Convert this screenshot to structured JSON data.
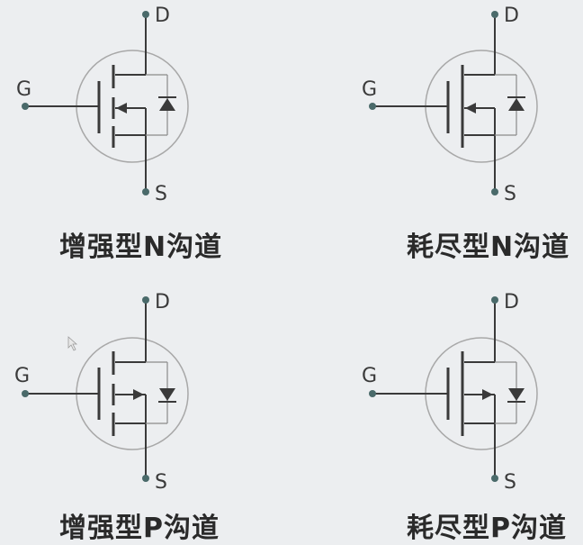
{
  "symbols": [
    {
      "id": "nmos-enhancement",
      "caption": "增强型N沟道",
      "gate": "G",
      "drain": "D",
      "source": "S",
      "channel": "N",
      "mode": "enhancement"
    },
    {
      "id": "nmos-depletion",
      "caption": "耗尽型N沟道",
      "gate": "G",
      "drain": "D",
      "source": "S",
      "channel": "N",
      "mode": "depletion"
    },
    {
      "id": "pmos-enhancement",
      "caption": "增强型P沟道",
      "gate": "G",
      "drain": "D",
      "source": "S",
      "channel": "P",
      "mode": "enhancement"
    },
    {
      "id": "pmos-depletion",
      "caption": "耗尽型P沟道",
      "gate": "G",
      "drain": "D",
      "source": "S",
      "channel": "P",
      "mode": "depletion"
    }
  ],
  "colors": {
    "background": "#eceef0",
    "stroke": "#3a3a3a",
    "circle": "#a8a8a8",
    "terminal": "#4a6a6a"
  }
}
